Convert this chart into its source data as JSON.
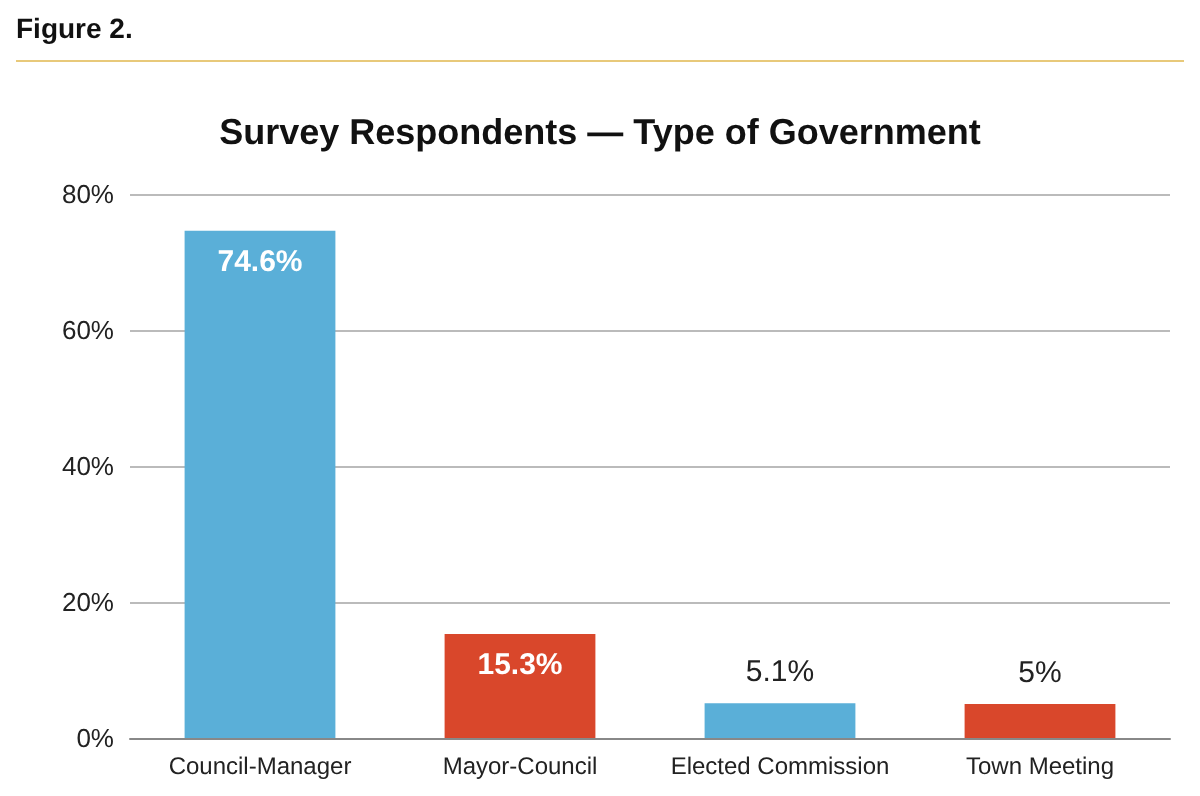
{
  "chart_data": {
    "type": "bar",
    "title": "Survey Respondents — Type of Government",
    "annotations": [
      "Figure 2."
    ],
    "categories": [
      "Council-Manager",
      "Mayor-Council",
      "Elected Commission",
      "Town Meeting"
    ],
    "values": [
      74.6,
      15.3,
      5.1,
      5
    ],
    "colors": [
      "#5aafd8",
      "#d9472b",
      "#5aafd8",
      "#d9472b"
    ],
    "value_labels": [
      "74.6%",
      "15.3%",
      "5.1%",
      "5%"
    ],
    "ylim": [
      0,
      80
    ],
    "yticks": [
      {
        "value": 0,
        "label": "0%"
      },
      {
        "value": 20,
        "label": "20%"
      },
      {
        "value": 40,
        "label": "40%"
      },
      {
        "value": 60,
        "label": "60%"
      },
      {
        "value": 80,
        "label": "80%"
      }
    ],
    "grid": "y"
  }
}
